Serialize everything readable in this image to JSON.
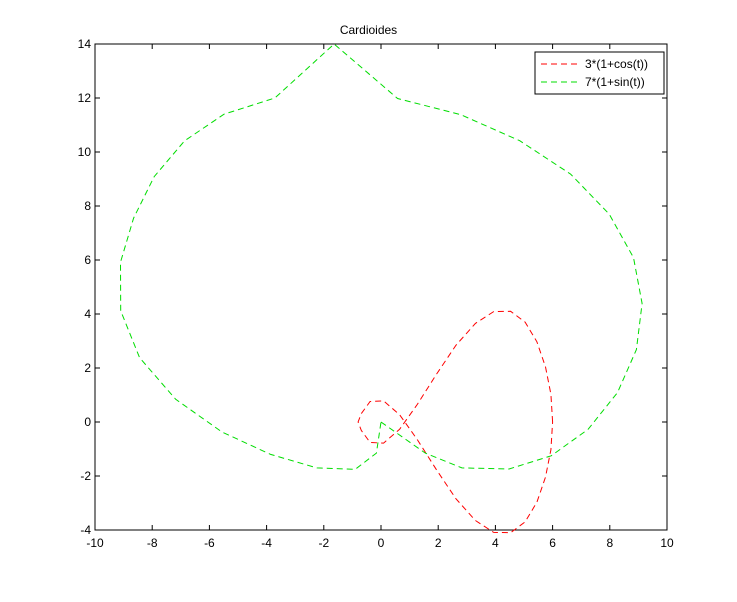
{
  "chart_data": {
    "type": "line",
    "title": "Cardioides",
    "xlabel": "",
    "ylabel": "",
    "xlim": [
      -10,
      10
    ],
    "ylim": [
      -4,
      14
    ],
    "xticks": [
      -10,
      -8,
      -6,
      -4,
      -2,
      0,
      2,
      4,
      6,
      8,
      10
    ],
    "yticks": [
      -4,
      -2,
      0,
      2,
      4,
      6,
      8,
      10,
      12,
      14
    ],
    "xtick_labels": [
      "-10",
      "-8",
      "-6",
      "-4",
      "-2",
      "0",
      "2",
      "4",
      "6",
      "8",
      "10"
    ],
    "ytick_labels": [
      "-4",
      "-2",
      "0",
      "2",
      "4",
      "6",
      "8",
      "10",
      "12",
      "14"
    ],
    "grid": false,
    "legend_position": "top-right",
    "series": [
      {
        "name": "3*(1+cos(t))",
        "color": "#ff0000",
        "line_style": "dashed",
        "x": [
          6.0,
          5.94,
          5.75,
          5.45,
          5.04,
          4.53,
          3.94,
          3.3,
          2.62,
          1.94,
          1.27,
          0.65,
          0.09,
          -0.38,
          -0.69,
          -0.8,
          -0.69,
          -0.38,
          0.09,
          0.65,
          1.27,
          1.94,
          2.62,
          3.3,
          3.94,
          4.53,
          5.04,
          5.45,
          5.75,
          5.94,
          6.0
        ],
        "y": [
          0.0,
          1.03,
          2.04,
          2.97,
          3.7,
          4.1,
          4.09,
          3.65,
          2.84,
          1.77,
          0.65,
          -0.27,
          -0.78,
          -0.76,
          -0.31,
          0.0,
          0.31,
          0.76,
          0.78,
          0.27,
          -0.65,
          -1.77,
          -2.84,
          -3.65,
          -4.09,
          -4.1,
          -3.7,
          -2.97,
          -2.04,
          -1.03,
          0.0
        ]
      },
      {
        "name": "7*(1+sin(t))",
        "color": "#00dd00",
        "line_style": "dashed",
        "x": [
          0.0,
          1.55,
          2.83,
          4.48,
          5.95,
          7.24,
          8.27,
          8.93,
          9.13,
          8.83,
          7.98,
          6.63,
          4.85,
          2.79,
          0.58,
          -1.64,
          -3.71,
          -5.49,
          -6.87,
          -7.93,
          -8.65,
          -9.11,
          -9.1,
          -8.44,
          -7.18,
          -5.56,
          -3.86,
          -2.24,
          -0.9,
          -0.16,
          0.0
        ],
        "y": [
          0.0,
          -1.15,
          -1.7,
          -1.74,
          -1.25,
          -0.27,
          1.09,
          2.68,
          4.39,
          6.09,
          7.7,
          9.18,
          10.42,
          11.38,
          11.98,
          14.0,
          12.0,
          11.4,
          10.41,
          9.09,
          7.55,
          5.92,
          4.12,
          2.38,
          0.84,
          -0.37,
          -1.2,
          -1.7,
          -1.75,
          -1.15,
          0.0
        ]
      }
    ]
  }
}
